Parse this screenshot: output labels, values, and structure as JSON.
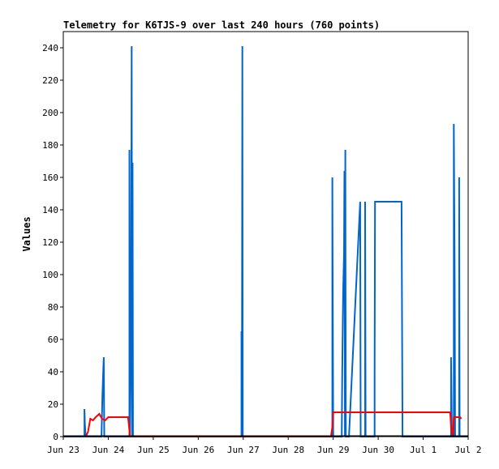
{
  "chart_data": {
    "type": "line",
    "title": "Telemetry for K6TJS-9 over last 240 hours (760 points)",
    "xlabel": "",
    "ylabel": "Values",
    "xlim": [
      "Jun 23",
      "Jul 2"
    ],
    "ylim": [
      0,
      250
    ],
    "x_ticks": [
      "Jun 23",
      "Jun 24",
      "Jun 25",
      "Jun 26",
      "Jun 27",
      "Jun 28",
      "Jun 29",
      "Jun 30",
      "Jul 1",
      "Jul 2"
    ],
    "y_ticks": [
      0,
      20,
      40,
      60,
      80,
      100,
      120,
      140,
      160,
      180,
      200,
      220,
      240
    ],
    "grid": false,
    "legend": "none",
    "colors": {
      "series_a": "#0066cc",
      "series_b": "#ff0000",
      "baseline": "#000000"
    },
    "series": [
      {
        "color": "#0066cc",
        "x_unit": "days since Jun 23 00:00",
        "points": [
          [
            0.0,
            0
          ],
          [
            0.47,
            0
          ],
          [
            0.47,
            17
          ],
          [
            0.48,
            8
          ],
          [
            0.49,
            3
          ],
          [
            0.5,
            0
          ],
          [
            0.85,
            0
          ],
          [
            0.87,
            25
          ],
          [
            0.89,
            41
          ],
          [
            0.9,
            49
          ],
          [
            0.91,
            0
          ],
          [
            1.47,
            0
          ],
          [
            1.47,
            177
          ],
          [
            1.48,
            0
          ],
          [
            1.5,
            56
          ],
          [
            1.51,
            113
          ],
          [
            1.52,
            241
          ],
          [
            1.53,
            0
          ],
          [
            1.54,
            169
          ],
          [
            1.55,
            0
          ],
          [
            3.96,
            0
          ],
          [
            3.96,
            65
          ],
          [
            3.97,
            0
          ],
          [
            3.98,
            241
          ],
          [
            3.99,
            0
          ],
          [
            5.98,
            0
          ],
          [
            5.98,
            160
          ],
          [
            5.99,
            81
          ],
          [
            6.0,
            0
          ],
          [
            6.19,
            0
          ],
          [
            6.2,
            40
          ],
          [
            6.22,
            89
          ],
          [
            6.24,
            113
          ],
          [
            6.25,
            164
          ],
          [
            6.26,
            0
          ],
          [
            6.27,
            177
          ],
          [
            6.28,
            0
          ],
          [
            6.35,
            0
          ],
          [
            6.6,
            145
          ],
          [
            6.61,
            0
          ],
          [
            6.71,
            0
          ],
          [
            6.71,
            145
          ],
          [
            6.72,
            0
          ],
          [
            6.92,
            0
          ],
          [
            6.92,
            40
          ],
          [
            6.93,
            145
          ],
          [
            7.52,
            145
          ],
          [
            7.53,
            73
          ],
          [
            7.54,
            0
          ],
          [
            8.62,
            0
          ],
          [
            8.62,
            49
          ],
          [
            8.63,
            25
          ],
          [
            8.64,
            0
          ],
          [
            8.68,
            0
          ],
          [
            8.68,
            193
          ],
          [
            8.7,
            97
          ],
          [
            8.71,
            0
          ],
          [
            8.8,
            0
          ],
          [
            8.8,
            160
          ],
          [
            8.81,
            0
          ],
          [
            9.0,
            0
          ]
        ]
      },
      {
        "color": "#ff0000",
        "x_unit": "days since Jun 23 00:00",
        "points": [
          [
            0.5,
            0
          ],
          [
            0.55,
            3
          ],
          [
            0.6,
            11
          ],
          [
            0.66,
            10
          ],
          [
            0.72,
            12
          ],
          [
            0.8,
            14
          ],
          [
            0.86,
            11
          ],
          [
            0.93,
            10
          ],
          [
            1.0,
            12
          ],
          [
            1.44,
            12
          ],
          [
            1.47,
            4
          ],
          [
            1.48,
            0
          ],
          [
            5.95,
            0
          ],
          [
            5.98,
            6
          ],
          [
            6.0,
            15
          ],
          [
            8.6,
            15
          ],
          [
            8.63,
            3
          ],
          [
            8.66,
            0
          ],
          [
            8.68,
            12
          ],
          [
            8.82,
            12
          ],
          [
            8.85,
            11
          ]
        ]
      }
    ]
  }
}
